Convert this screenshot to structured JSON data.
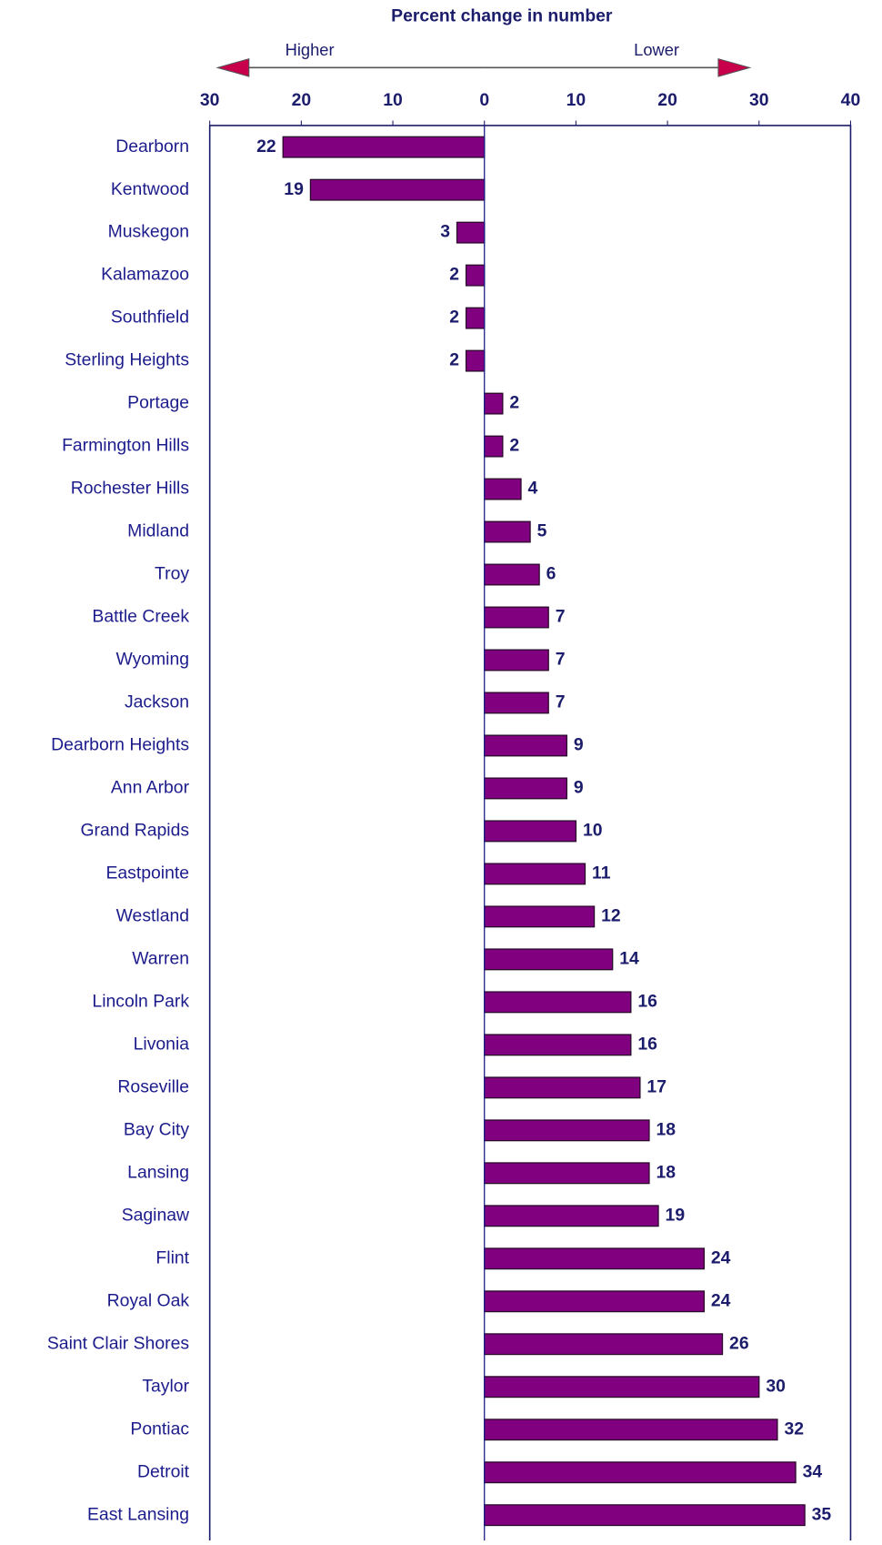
{
  "chart_data": {
    "type": "bar",
    "orientation": "horizontal",
    "title": "Percent change in number",
    "annotations": [
      "Higher",
      "Lower"
    ],
    "categories": [
      "Dearborn",
      "Kentwood",
      "Muskegon",
      "Kalamazoo",
      "Southfield",
      "Sterling Heights",
      "Portage",
      "Farmington Hills",
      "Rochester Hills",
      "Midland",
      "Troy",
      "Battle Creek",
      "Wyoming",
      "Jackson",
      "Dearborn Heights",
      "Ann Arbor",
      "Grand Rapids",
      "Eastpointe",
      "Westland",
      "Warren",
      "Lincoln Park",
      "Livonia",
      "Roseville",
      "Bay City",
      "Lansing",
      "Saginaw",
      "Flint",
      "Royal Oak",
      "Saint Clair Shores",
      "Taylor",
      "Pontiac",
      "Detroit",
      "East Lansing"
    ],
    "values": [
      -22,
      -19,
      -3,
      -2,
      -2,
      -2,
      2,
      2,
      4,
      5,
      6,
      7,
      7,
      7,
      9,
      9,
      10,
      11,
      12,
      14,
      16,
      16,
      17,
      18,
      18,
      19,
      24,
      24,
      26,
      30,
      32,
      34,
      35
    ],
    "value_labels": [
      "22",
      "19",
      "3",
      "2",
      "2",
      "2",
      "2",
      "2",
      "4",
      "5",
      "6",
      "7",
      "7",
      "7",
      "9",
      "9",
      "10",
      "11",
      "12",
      "14",
      "16",
      "16",
      "17",
      "18",
      "18",
      "19",
      "24",
      "24",
      "26",
      "30",
      "32",
      "34",
      "35"
    ],
    "color": "#800080",
    "xlim": [
      -30,
      40
    ],
    "xticks": [
      {
        "value": -30,
        "label": "30"
      },
      {
        "value": -20,
        "label": "20"
      },
      {
        "value": -10,
        "label": "10"
      },
      0,
      10,
      20,
      30,
      40
    ]
  }
}
